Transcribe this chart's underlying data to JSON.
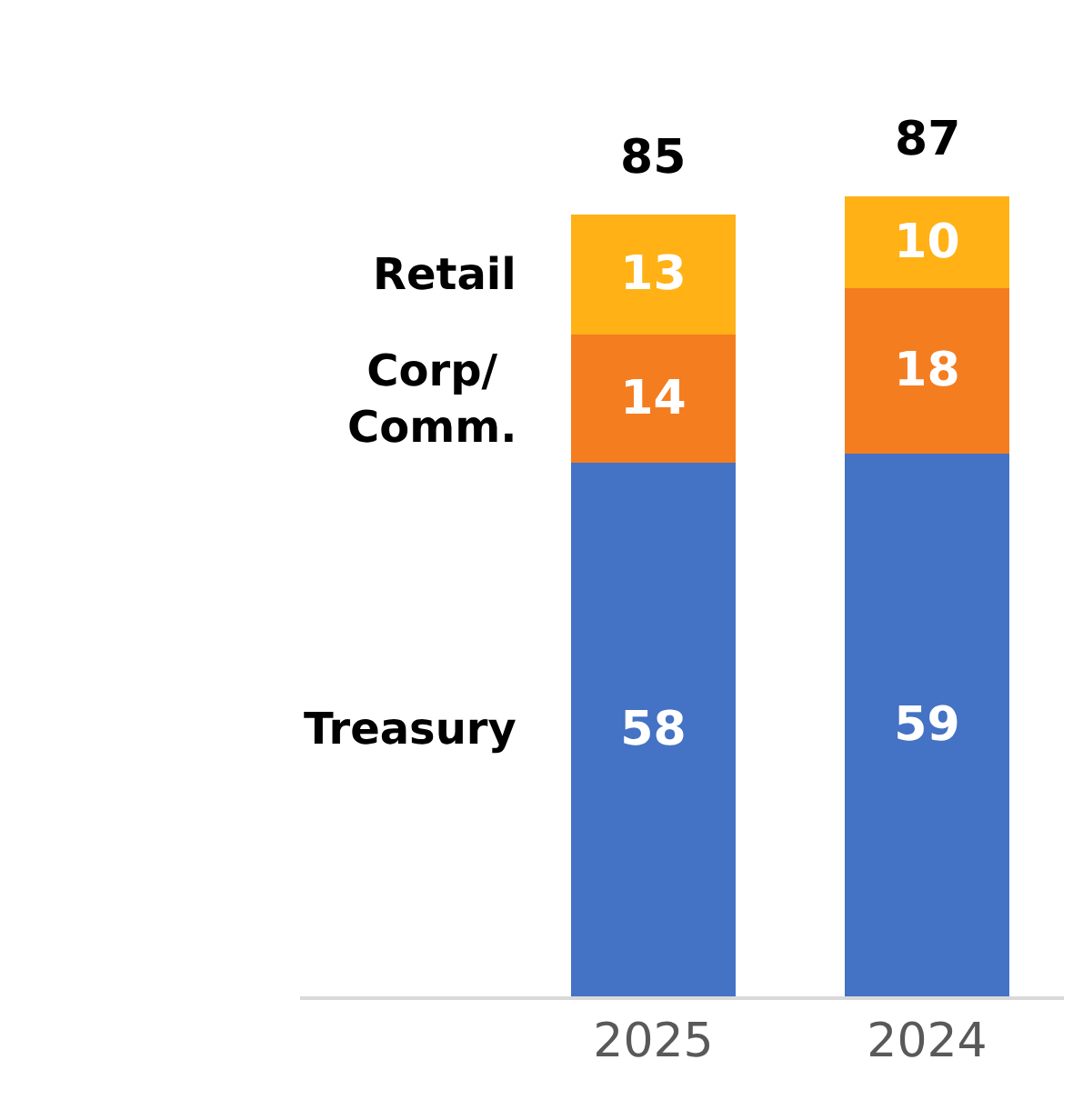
{
  "chart_data": {
    "type": "bar",
    "stacked": true,
    "categories": [
      "2025",
      "2024"
    ],
    "series": [
      {
        "name": "Treasury",
        "color": "#4472c4",
        "values": [
          58,
          59
        ]
      },
      {
        "name": "Corp/\nComm.",
        "color": "#f47d20",
        "values": [
          14,
          18
        ]
      },
      {
        "name": "Retail",
        "color": "#ffb116",
        "values": [
          13,
          10
        ]
      }
    ],
    "data_labels": true,
    "totals": [
      "85",
      "87"
    ],
    "legend": false
  }
}
